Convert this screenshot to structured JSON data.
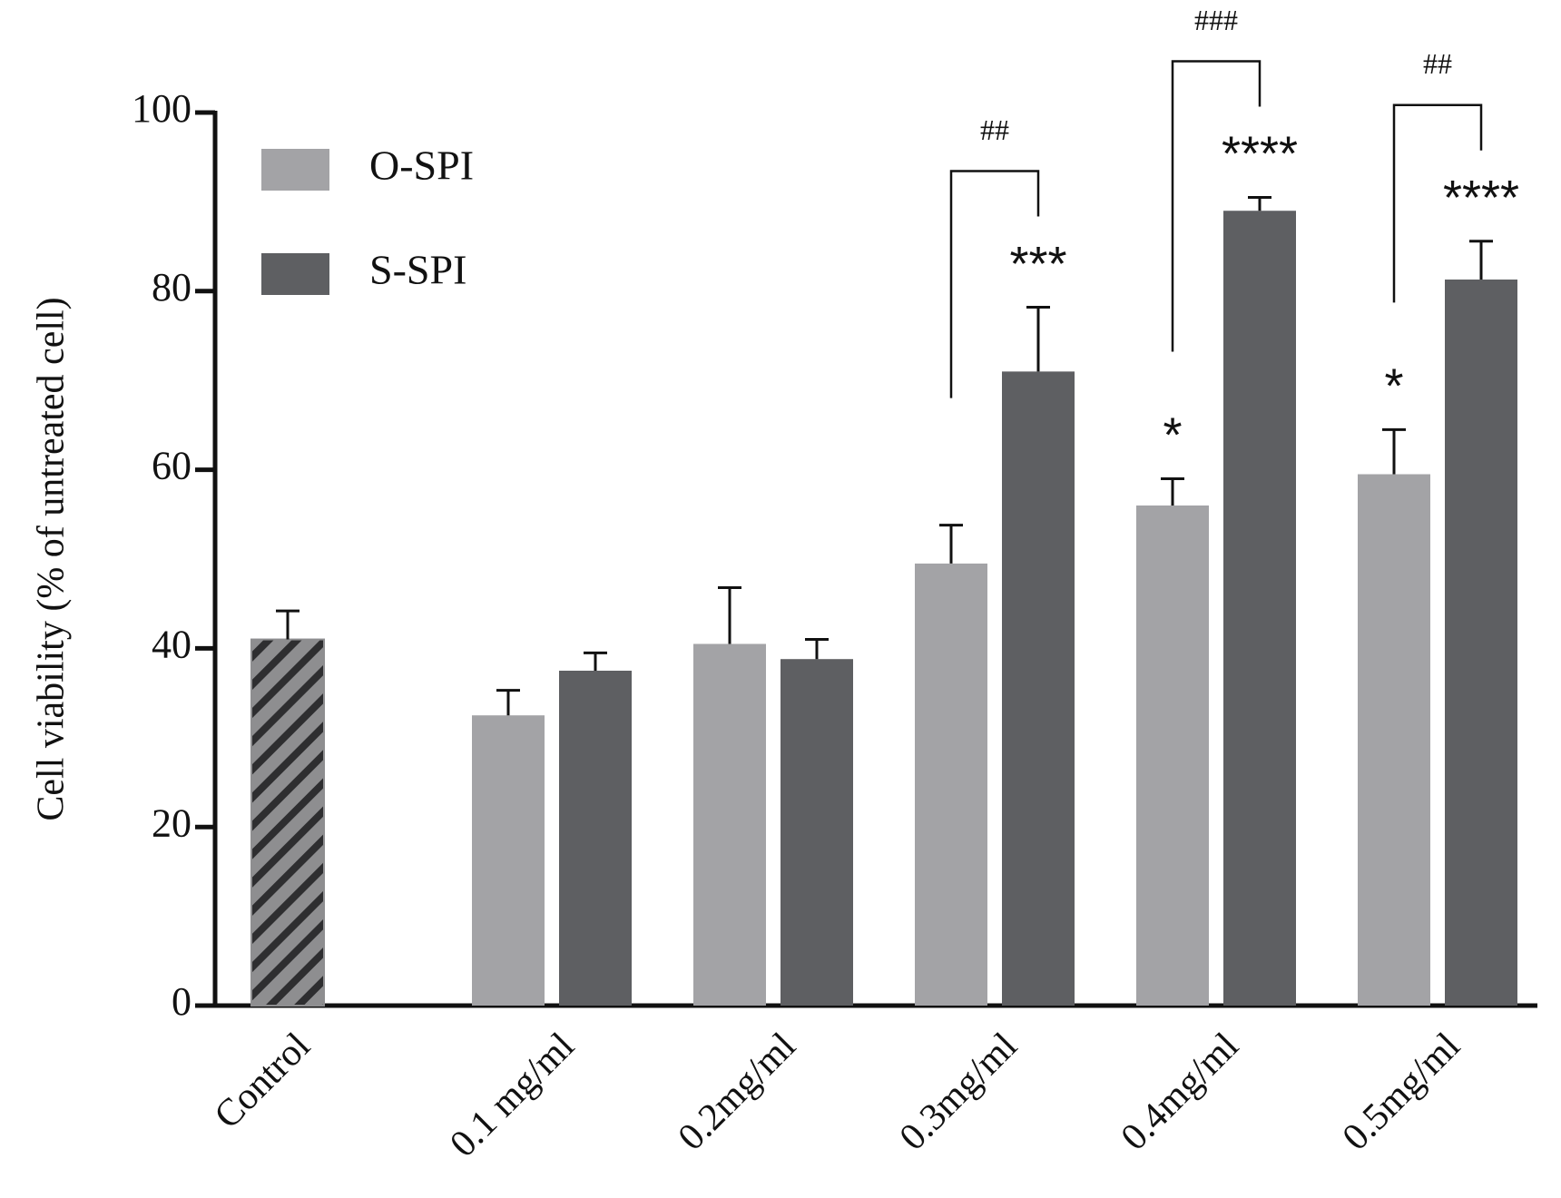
{
  "chart_data": {
    "type": "bar",
    "y_label": "Cell viability (% of untreated cell)",
    "categories": [
      "Control",
      "0.1 mg/ml",
      "0.2mg/ml",
      "0.3mg/ml",
      "0.4mg/ml",
      "0.5mg/ml"
    ],
    "control_value": 41,
    "control_error": 3.2,
    "control_color": "#8e8e90",
    "series": [
      {
        "name": "O-SPI",
        "color": "#a3a3a6",
        "values": [
          null,
          32.5,
          40.5,
          49.5,
          56,
          59.5
        ],
        "errors": [
          null,
          2.8,
          6.3,
          4.3,
          3,
          5
        ],
        "stars": [
          null,
          null,
          null,
          null,
          "*",
          "*"
        ]
      },
      {
        "name": "S-SPI",
        "color": "#5e5f62",
        "values": [
          null,
          37.5,
          38.8,
          71,
          89,
          81.3
        ],
        "errors": [
          null,
          2,
          2.2,
          7.2,
          1.5,
          4.3
        ],
        "stars": [
          null,
          null,
          null,
          "***",
          "****",
          "****"
        ]
      }
    ],
    "bracket_labels": [
      null,
      null,
      null,
      "##",
      "###",
      "##"
    ],
    "ylim": [
      0,
      100
    ],
    "yticks": [
      0,
      20,
      40,
      60,
      80,
      100
    ],
    "legend": "upper left"
  }
}
